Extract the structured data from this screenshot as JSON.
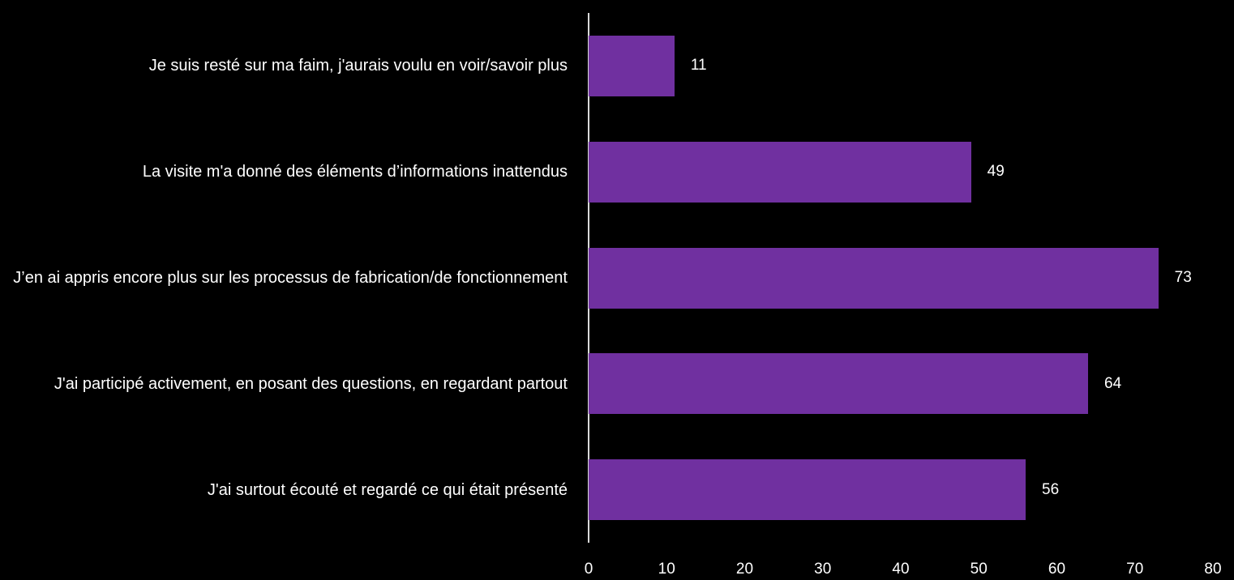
{
  "chart_data": {
    "type": "bar",
    "orientation": "horizontal",
    "categories": [
      "Je suis resté sur ma faim, j'aurais voulu en voir/savoir plus",
      "La visite m'a donné des éléments d’informations inattendus",
      "J’en ai appris encore plus sur les processus de fabrication/de fonctionnement",
      "J'ai participé activement, en posant des questions, en regardant partout",
      "J'ai surtout écouté et regardé ce qui était présenté"
    ],
    "values": [
      11,
      49,
      73,
      64,
      56
    ],
    "xlim": [
      0,
      80
    ],
    "ticks": [
      0,
      10,
      20,
      30,
      40,
      50,
      60,
      70,
      80
    ],
    "bar_color": "#7030a0",
    "grid": false,
    "legend": "none"
  }
}
